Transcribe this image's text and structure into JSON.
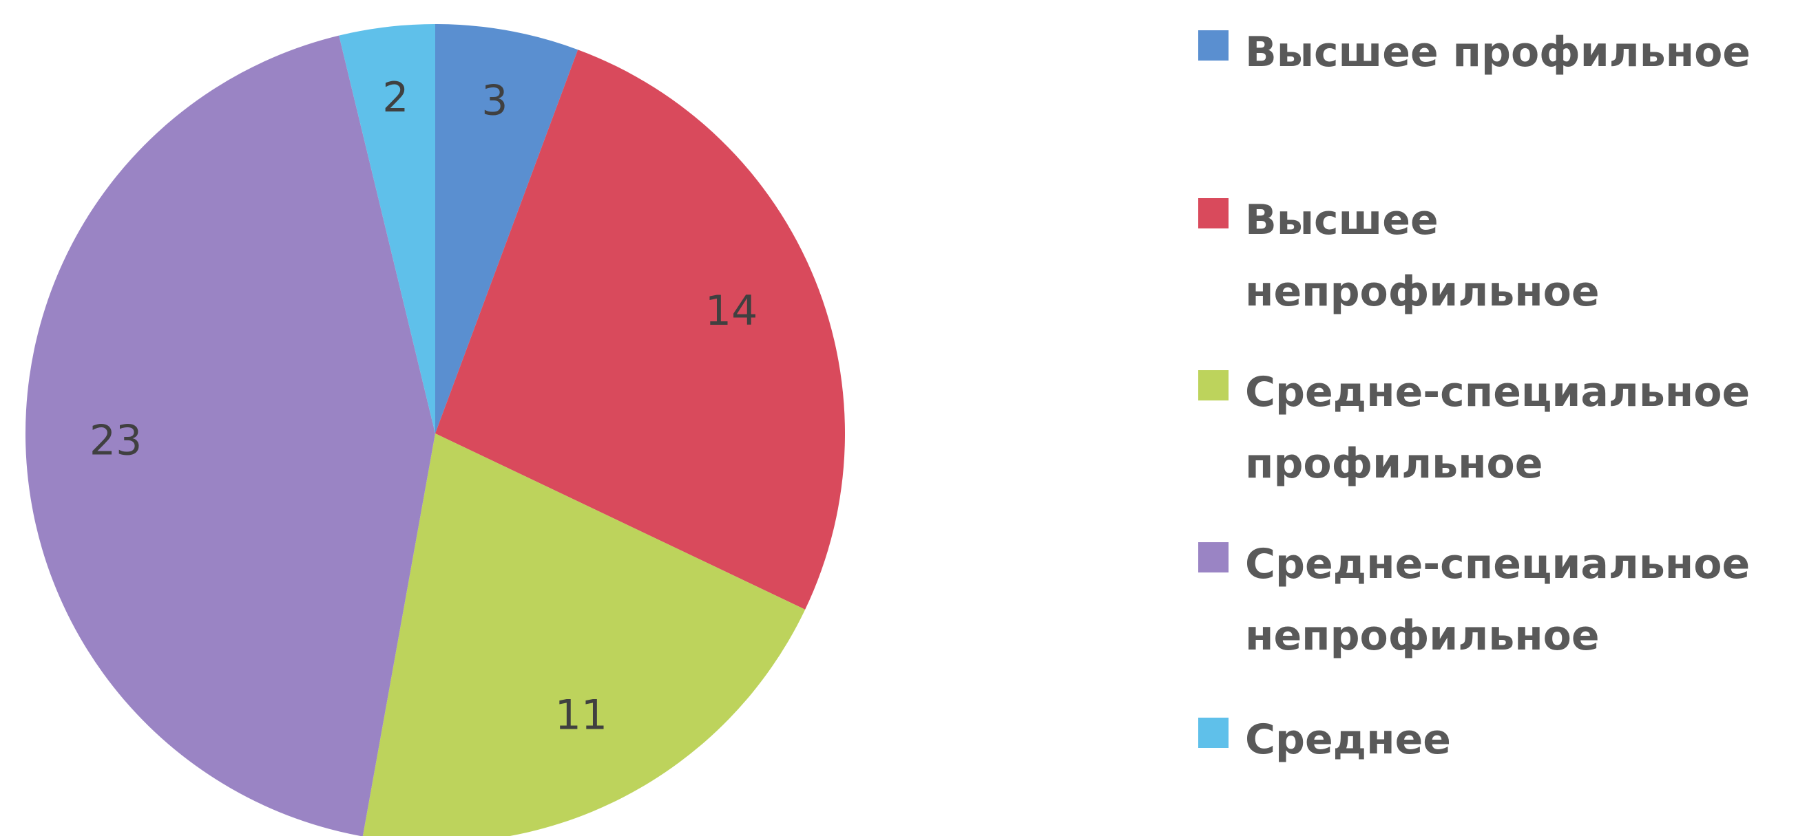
{
  "chart_data": {
    "type": "pie",
    "categories": [
      "Высшее профильное",
      "Высшее непрофильное",
      "Средне-специальное профильное",
      "Средне-специальное непрофильное",
      "Среднее"
    ],
    "values": [
      3,
      14,
      11,
      23,
      2
    ],
    "colors": [
      "#5a8fd0",
      "#d94a5c",
      "#bdd35c",
      "#9a84c4",
      "#5fc0ea"
    ],
    "legend": "right"
  }
}
